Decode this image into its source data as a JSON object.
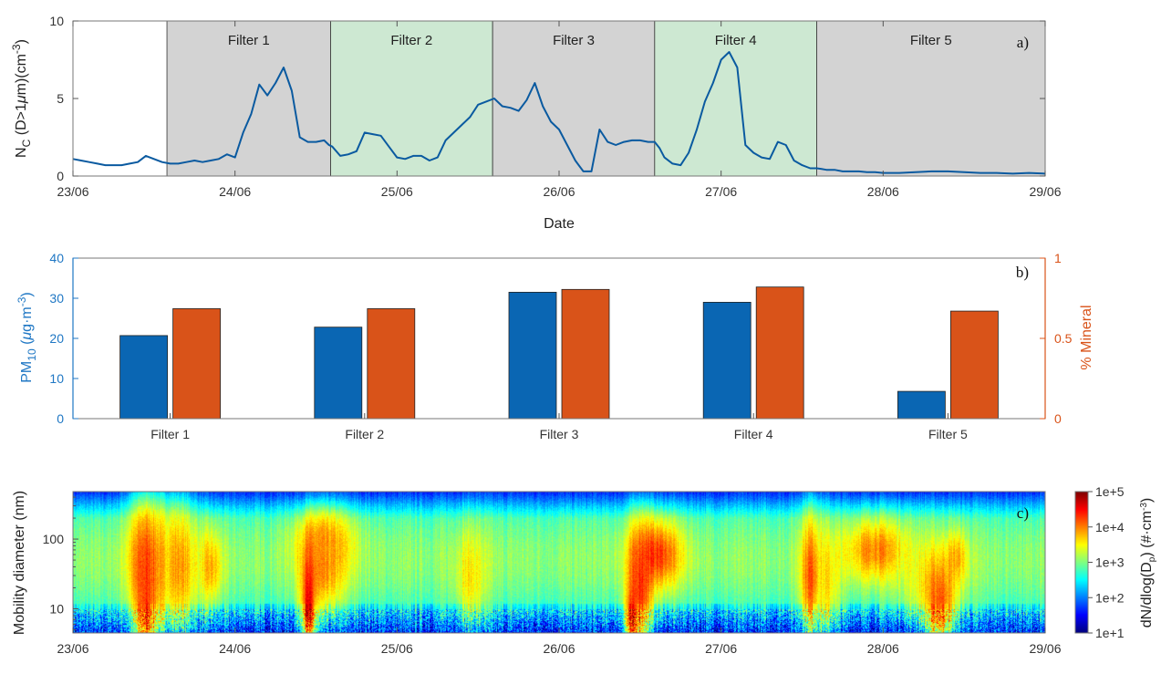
{
  "chart_data": [
    {
      "type": "line",
      "panel_label": "a)",
      "xlabel": "Date",
      "ylabel": "N_C (D>1μm)(cm^-3)",
      "ylabel_parts": {
        "main": "N",
        "sub": "C",
        "mid": " (D>1",
        "mu": "μ",
        "after_mu": "m)(cm",
        "sup": "-3",
        "end": ")"
      },
      "xticks": [
        "23/06",
        "24/06",
        "25/06",
        "26/06",
        "27/06",
        "28/06",
        "29/06"
      ],
      "xlim": [
        0,
        6
      ],
      "ylim": [
        0,
        10
      ],
      "yticks": [
        "0",
        "5",
        "10"
      ],
      "filters": [
        {
          "label": "Filter 1",
          "start": 0.58,
          "end": 1.59,
          "color": "#d3d3d3"
        },
        {
          "label": "Filter 2",
          "start": 1.59,
          "end": 2.59,
          "color": "#cde8d2"
        },
        {
          "label": "Filter 3",
          "start": 2.59,
          "end": 3.59,
          "color": "#d3d3d3"
        },
        {
          "label": "Filter 4",
          "start": 3.59,
          "end": 4.59,
          "color": "#cde8d2"
        },
        {
          "label": "Filter 5",
          "start": 4.59,
          "end": 6.0,
          "color": "#d3d3d3"
        }
      ],
      "series": [
        {
          "color": "#0a5aa0",
          "x": [
            0.0,
            0.05,
            0.1,
            0.15,
            0.2,
            0.25,
            0.3,
            0.35,
            0.4,
            0.45,
            0.5,
            0.55,
            0.6,
            0.65,
            0.7,
            0.75,
            0.8,
            0.85,
            0.9,
            0.95,
            1.0,
            1.05,
            1.1,
            1.15,
            1.2,
            1.25,
            1.3,
            1.35,
            1.4,
            1.45,
            1.5,
            1.55,
            1.58,
            1.6,
            1.65,
            1.7,
            1.75,
            1.8,
            1.85,
            1.9,
            1.95,
            2.0,
            2.05,
            2.1,
            2.15,
            2.2,
            2.25,
            2.3,
            2.35,
            2.4,
            2.45,
            2.5,
            2.55,
            2.6,
            2.65,
            2.7,
            2.75,
            2.8,
            2.85,
            2.9,
            2.95,
            3.0,
            3.05,
            3.1,
            3.15,
            3.2,
            3.25,
            3.3,
            3.35,
            3.4,
            3.45,
            3.5,
            3.55,
            3.59,
            3.62,
            3.65,
            3.7,
            3.75,
            3.8,
            3.85,
            3.9,
            3.95,
            4.0,
            4.05,
            4.1,
            4.15,
            4.2,
            4.25,
            4.3,
            4.35,
            4.4,
            4.45,
            4.5,
            4.55,
            4.59,
            4.62,
            4.65,
            4.7,
            4.75,
            4.8,
            4.85,
            4.9,
            4.95,
            5.0,
            5.1,
            5.2,
            5.3,
            5.4,
            5.5,
            5.6,
            5.7,
            5.8,
            5.9,
            6.0
          ],
          "y": [
            1.1,
            1.0,
            0.9,
            0.8,
            0.7,
            0.7,
            0.7,
            0.8,
            0.9,
            1.3,
            1.1,
            0.9,
            0.8,
            0.8,
            0.9,
            1.0,
            0.9,
            1.0,
            1.1,
            1.4,
            1.2,
            2.8,
            4.0,
            5.9,
            5.2,
            6.0,
            7.0,
            5.5,
            2.5,
            2.2,
            2.2,
            2.3,
            2.0,
            1.9,
            1.3,
            1.4,
            1.6,
            2.8,
            2.7,
            2.6,
            1.9,
            1.2,
            1.1,
            1.3,
            1.3,
            1.0,
            1.2,
            2.3,
            2.8,
            3.3,
            3.8,
            4.6,
            4.8,
            5.0,
            4.5,
            4.4,
            4.2,
            4.9,
            6.0,
            4.5,
            3.5,
            3.0,
            2.0,
            1.0,
            0.3,
            0.3,
            3.0,
            2.2,
            2.0,
            2.2,
            2.3,
            2.3,
            2.2,
            2.2,
            1.8,
            1.2,
            0.8,
            0.7,
            1.5,
            3.0,
            4.8,
            6.0,
            7.5,
            8.0,
            7.0,
            2.0,
            1.5,
            1.2,
            1.1,
            2.2,
            2.0,
            1.0,
            0.7,
            0.5,
            0.5,
            0.45,
            0.4,
            0.4,
            0.3,
            0.3,
            0.3,
            0.25,
            0.25,
            0.2,
            0.2,
            0.25,
            0.3,
            0.3,
            0.25,
            0.2,
            0.2,
            0.15,
            0.2,
            0.15
          ]
        }
      ]
    },
    {
      "type": "bar",
      "panel_label": "b)",
      "categories": [
        "Filter 1",
        "Filter 2",
        "Filter 3",
        "Filter 4",
        "Filter 5"
      ],
      "ylabel_left": "PM10 (μg·m-3)",
      "ylabel_left_parts": {
        "main": "PM",
        "sub": "10",
        "mid": " (",
        "mu": "μ",
        "after_mu": "g·m",
        "sup": "-3",
        "end": ")"
      },
      "ylabel_right": "% Mineral",
      "ylim_left": [
        0,
        40
      ],
      "ylim_right": [
        0,
        1
      ],
      "yticks_left": [
        "0",
        "10",
        "20",
        "30",
        "40"
      ],
      "yticks_right": [
        "0",
        "0.5",
        "1"
      ],
      "left_color": "#1f77c4",
      "right_color": "#d95319",
      "series": [
        {
          "axis": "left",
          "color": "#0a66b3",
          "values": [
            20.7,
            22.8,
            31.5,
            29.0,
            6.8
          ]
        },
        {
          "axis": "right",
          "color": "#d95319",
          "values": [
            0.685,
            0.685,
            0.805,
            0.82,
            0.67
          ]
        }
      ]
    },
    {
      "type": "heatmap",
      "panel_label": "c)",
      "ylabel": "Mobility diameter  (nm)",
      "xticks": [
        "23/06",
        "24/06",
        "25/06",
        "26/06",
        "27/06",
        "28/06",
        "29/06"
      ],
      "yticks": [
        "10",
        "100"
      ],
      "ylim": [
        4.5,
        480
      ],
      "log_y": true,
      "colorbar": {
        "label": "dN/dlog(Dp)  (#·cm-3)",
        "label_parts": {
          "main": "dN/dlog(D",
          "sub": "p",
          "mid": ")  (#·cm",
          "sup": "-3",
          "end": ")"
        },
        "ticks": [
          "1e+1",
          "1e+2",
          "1e+3",
          "1e+4",
          "1e+5"
        ],
        "colormap": "jet"
      },
      "blobs": [
        {
          "t": 0.45,
          "d": 45,
          "w": 0.12,
          "s": 1.0,
          "v": 4.2
        },
        {
          "t": 0.65,
          "d": 40,
          "w": 0.12,
          "s": 0.9,
          "v": 3.9
        },
        {
          "t": 0.45,
          "d": 10,
          "w": 0.06,
          "s": 0.8,
          "v": 4.3
        },
        {
          "t": 0.85,
          "d": 40,
          "w": 0.07,
          "s": 0.5,
          "v": 3.8
        },
        {
          "t": 1.55,
          "d": 100,
          "w": 0.18,
          "s": 0.4,
          "v": 3.8
        },
        {
          "t": 1.55,
          "d": 40,
          "w": 0.15,
          "s": 0.6,
          "v": 3.9
        },
        {
          "t": 1.45,
          "d": 12,
          "w": 0.05,
          "s": 0.8,
          "v": 4.5
        },
        {
          "t": 2.45,
          "d": 30,
          "w": 0.1,
          "s": 0.7,
          "v": 3.6
        },
        {
          "t": 3.6,
          "d": 60,
          "w": 0.16,
          "s": 0.5,
          "v": 4.3
        },
        {
          "t": 3.5,
          "d": 20,
          "w": 0.07,
          "s": 0.9,
          "v": 4.4
        },
        {
          "t": 3.45,
          "d": 8,
          "w": 0.05,
          "s": 0.5,
          "v": 4.3
        },
        {
          "t": 4.55,
          "d": 30,
          "w": 0.07,
          "s": 0.9,
          "v": 4.2
        },
        {
          "t": 4.65,
          "d": 25,
          "w": 0.08,
          "s": 0.7,
          "v": 3.6
        },
        {
          "t": 4.95,
          "d": 70,
          "w": 0.2,
          "s": 0.45,
          "v": 4.0
        },
        {
          "t": 5.3,
          "d": 25,
          "w": 0.18,
          "s": 0.6,
          "v": 3.6
        },
        {
          "t": 5.45,
          "d": 55,
          "w": 0.07,
          "s": 0.35,
          "v": 3.8
        },
        {
          "t": 5.35,
          "d": 12,
          "w": 0.08,
          "s": 0.6,
          "v": 4.2
        }
      ]
    }
  ]
}
